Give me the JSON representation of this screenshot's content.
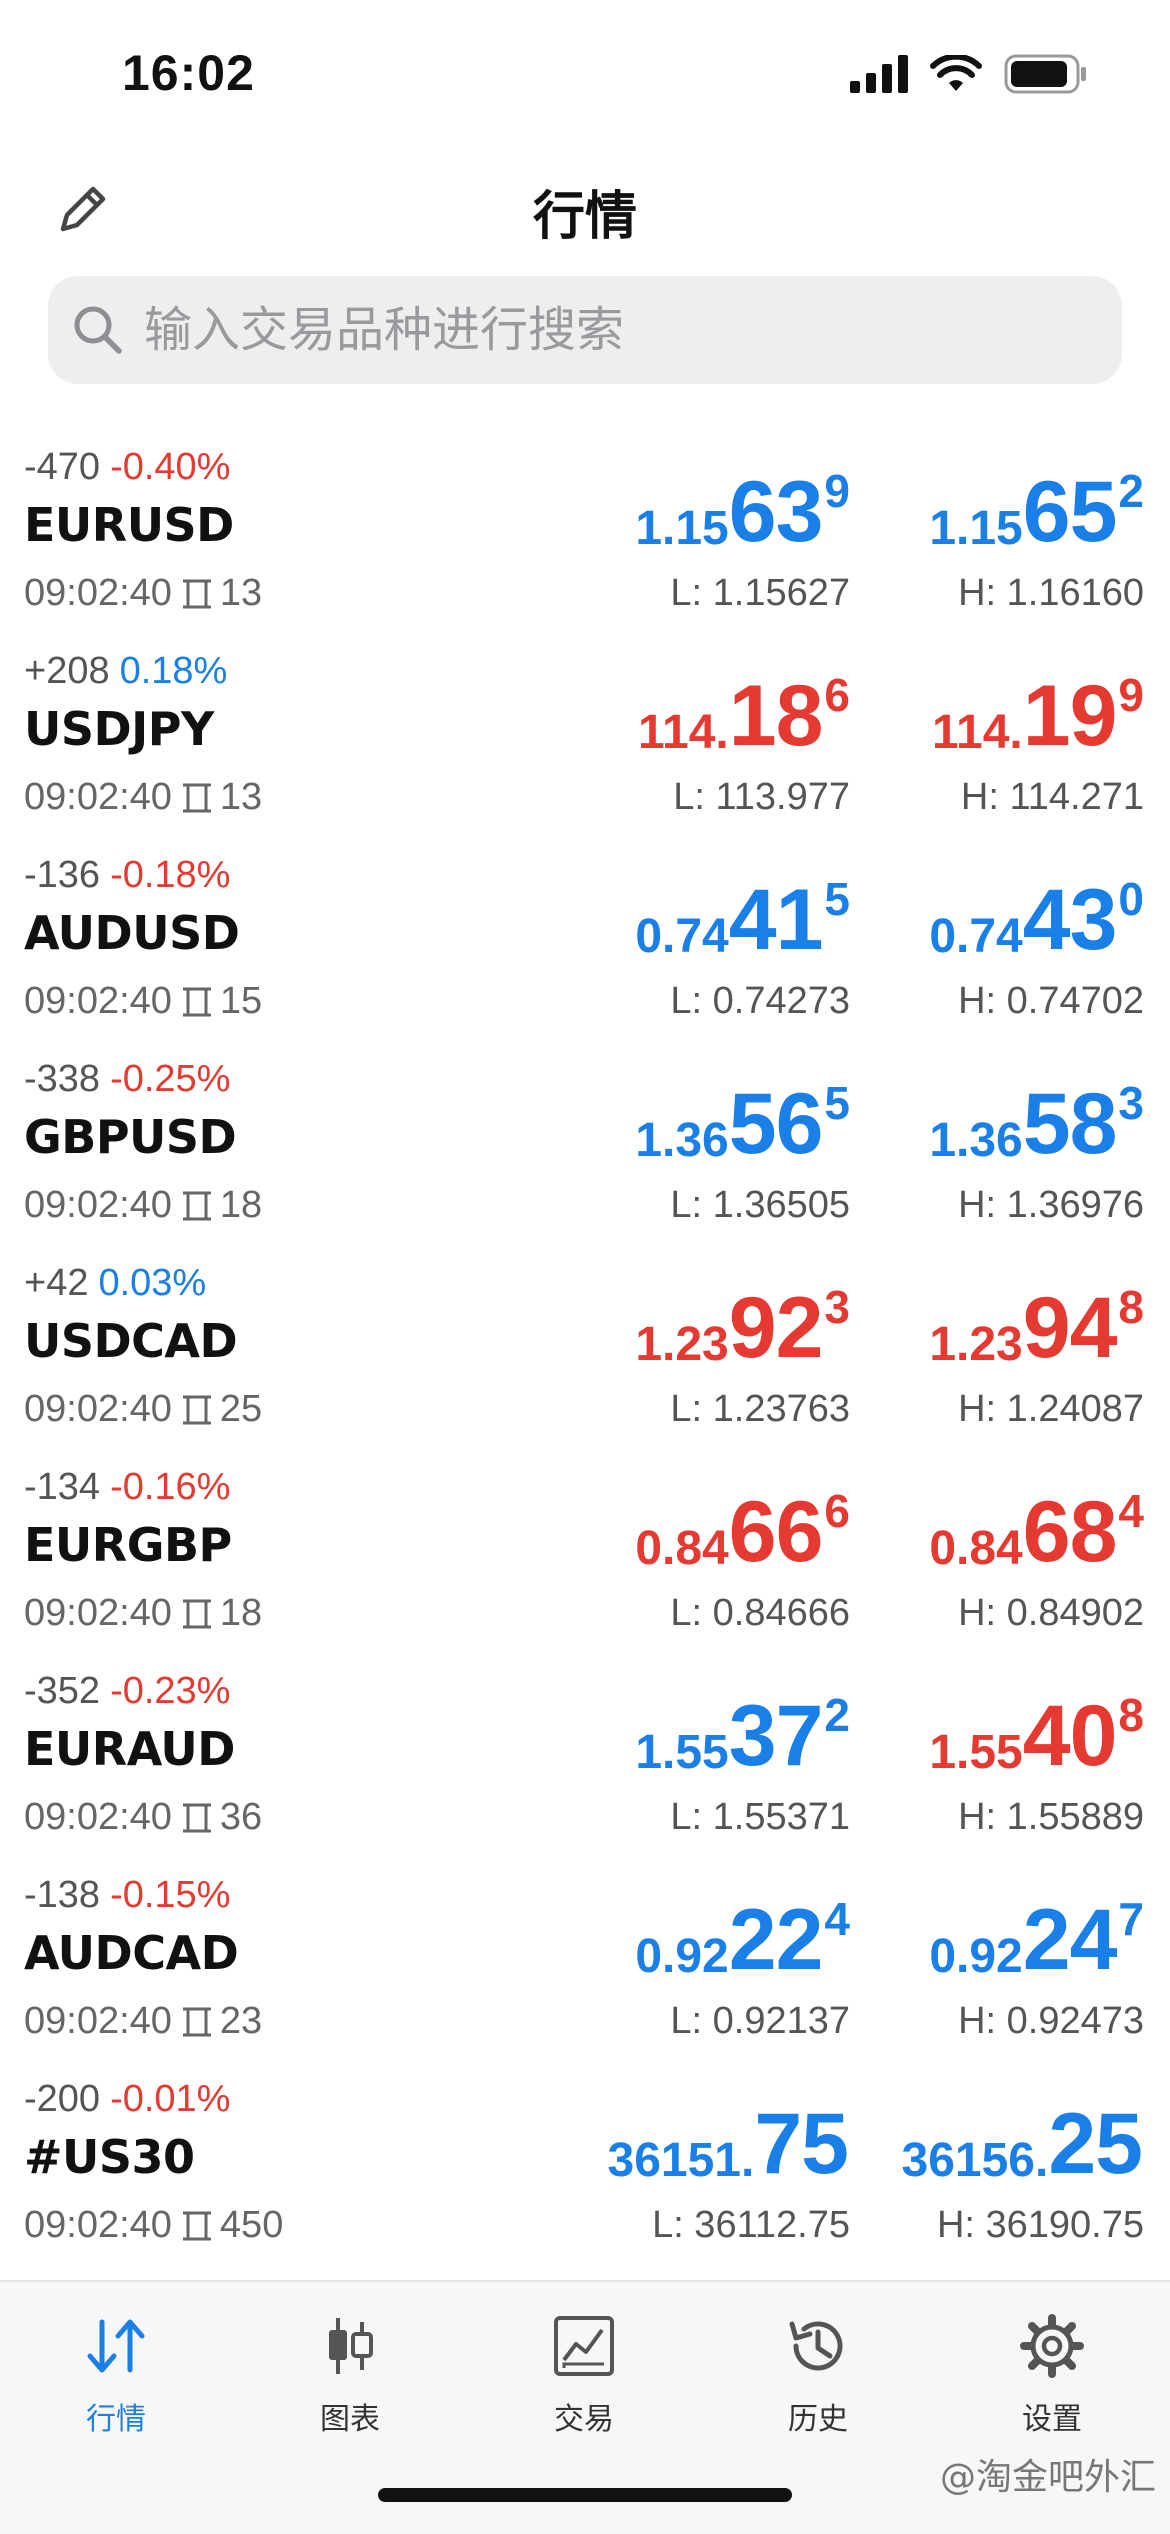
{
  "status_bar": {
    "time": "16:02"
  },
  "header": {
    "title": "行情"
  },
  "search": {
    "placeholder": "输入交易品种进行搜索"
  },
  "colors": {
    "blue": "#1a7fe6",
    "red": "#e53a32"
  },
  "quotes": [
    {
      "points": "-470",
      "percent": "-0.40%",
      "trend": "down",
      "symbol": "EURUSD",
      "time": "09:02:40",
      "spread": "13",
      "bid": {
        "pre": "1.15",
        "big": "63",
        "sup": "9",
        "color": "blue"
      },
      "ask": {
        "pre": "1.15",
        "big": "65",
        "sup": "2",
        "color": "blue"
      },
      "low": "L: 1.15627",
      "high": "H: 1.16160"
    },
    {
      "points": "+208",
      "percent": "0.18%",
      "trend": "up",
      "symbol": "USDJPY",
      "time": "09:02:40",
      "spread": "13",
      "bid": {
        "pre": "114.",
        "big": "18",
        "sup": "6",
        "color": "red"
      },
      "ask": {
        "pre": "114.",
        "big": "19",
        "sup": "9",
        "color": "red"
      },
      "low": "L: 113.977",
      "high": "H: 114.271"
    },
    {
      "points": "-136",
      "percent": "-0.18%",
      "trend": "down",
      "symbol": "AUDUSD",
      "time": "09:02:40",
      "spread": "15",
      "bid": {
        "pre": "0.74",
        "big": "41",
        "sup": "5",
        "color": "blue"
      },
      "ask": {
        "pre": "0.74",
        "big": "43",
        "sup": "0",
        "color": "blue"
      },
      "low": "L: 0.74273",
      "high": "H: 0.74702"
    },
    {
      "points": "-338",
      "percent": "-0.25%",
      "trend": "down",
      "symbol": "GBPUSD",
      "time": "09:02:40",
      "spread": "18",
      "bid": {
        "pre": "1.36",
        "big": "56",
        "sup": "5",
        "color": "blue"
      },
      "ask": {
        "pre": "1.36",
        "big": "58",
        "sup": "3",
        "color": "blue"
      },
      "low": "L: 1.36505",
      "high": "H: 1.36976"
    },
    {
      "points": "+42",
      "percent": "0.03%",
      "trend": "up",
      "symbol": "USDCAD",
      "time": "09:02:40",
      "spread": "25",
      "bid": {
        "pre": "1.23",
        "big": "92",
        "sup": "3",
        "color": "red"
      },
      "ask": {
        "pre": "1.23",
        "big": "94",
        "sup": "8",
        "color": "red"
      },
      "low": "L: 1.23763",
      "high": "H: 1.24087"
    },
    {
      "points": "-134",
      "percent": "-0.16%",
      "trend": "down",
      "symbol": "EURGBP",
      "time": "09:02:40",
      "spread": "18",
      "bid": {
        "pre": "0.84",
        "big": "66",
        "sup": "6",
        "color": "red"
      },
      "ask": {
        "pre": "0.84",
        "big": "68",
        "sup": "4",
        "color": "red"
      },
      "low": "L: 0.84666",
      "high": "H: 0.84902"
    },
    {
      "points": "-352",
      "percent": "-0.23%",
      "trend": "down",
      "symbol": "EURAUD",
      "time": "09:02:40",
      "spread": "36",
      "bid": {
        "pre": "1.55",
        "big": "37",
        "sup": "2",
        "color": "blue"
      },
      "ask": {
        "pre": "1.55",
        "big": "40",
        "sup": "8",
        "color": "red"
      },
      "low": "L: 1.55371",
      "high": "H: 1.55889"
    },
    {
      "points": "-138",
      "percent": "-0.15%",
      "trend": "down",
      "symbol": "AUDCAD",
      "time": "09:02:40",
      "spread": "23",
      "bid": {
        "pre": "0.92",
        "big": "22",
        "sup": "4",
        "color": "blue"
      },
      "ask": {
        "pre": "0.92",
        "big": "24",
        "sup": "7",
        "color": "blue"
      },
      "low": "L: 0.92137",
      "high": "H: 0.92473"
    },
    {
      "points": "-200",
      "percent": "-0.01%",
      "trend": "down",
      "symbol": "#US30",
      "time": "09:02:40",
      "spread": "450",
      "bid": {
        "pre": "36151.",
        "big": "75",
        "sup": "",
        "color": "blue"
      },
      "ask": {
        "pre": "36156.",
        "big": "25",
        "sup": "",
        "color": "blue"
      },
      "low": "L: 36112.75",
      "high": "H: 36190.75"
    }
  ],
  "tabs": [
    {
      "label": "行情",
      "icon": "quotes-arrows-icon",
      "active": true
    },
    {
      "label": "图表",
      "icon": "candlestick-icon",
      "active": false
    },
    {
      "label": "交易",
      "icon": "trade-chart-icon",
      "active": false
    },
    {
      "label": "历史",
      "icon": "history-clock-icon",
      "active": false
    },
    {
      "label": "设置",
      "icon": "gear-icon",
      "active": false
    }
  ],
  "watermark": "@淘金吧外汇"
}
